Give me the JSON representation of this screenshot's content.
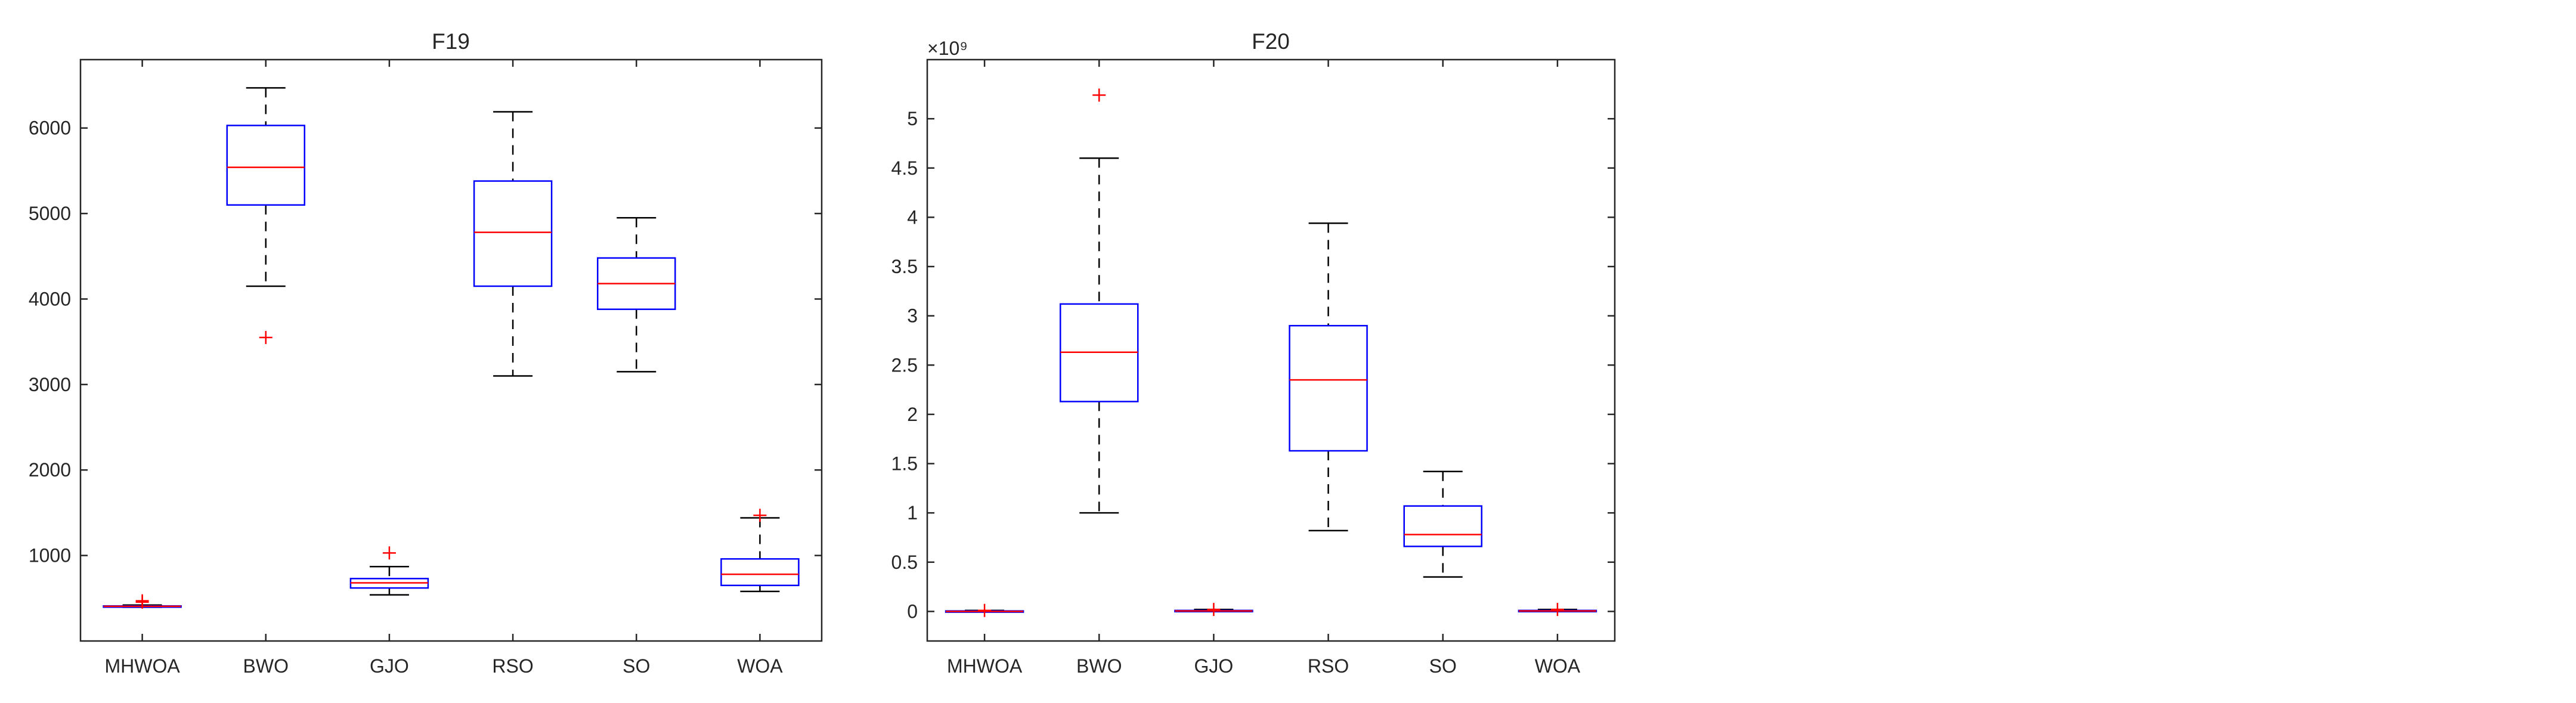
{
  "chart_data": [
    {
      "type": "box",
      "title": "F19",
      "categories": [
        "MHWOA",
        "BWO",
        "GJO",
        "RSO",
        "SO",
        "WOA"
      ],
      "ylim": [
        0,
        6800
      ],
      "yticks": [
        1000,
        2000,
        3000,
        4000,
        5000,
        6000
      ],
      "ytick_labels": [
        "1000",
        "2000",
        "3000",
        "4000",
        "5000",
        "6000"
      ],
      "exponent_label": "",
      "grid": false,
      "colors": {
        "box": "#0000ff",
        "median": "#ff0000",
        "whisker": "#000000",
        "outlier": "#ff0000"
      },
      "boxes": [
        {
          "min": 395,
          "q1": 400,
          "median": 405,
          "q3": 410,
          "max": 420,
          "outliers": [
            455,
            470
          ]
        },
        {
          "min": 4150,
          "q1": 5100,
          "median": 5540,
          "q3": 6030,
          "max": 6470,
          "outliers": [
            3550
          ]
        },
        {
          "min": 540,
          "q1": 620,
          "median": 680,
          "q3": 730,
          "max": 870,
          "outliers": [
            1030
          ]
        },
        {
          "min": 3100,
          "q1": 4150,
          "median": 4780,
          "q3": 5380,
          "max": 6190,
          "outliers": []
        },
        {
          "min": 3150,
          "q1": 3880,
          "median": 4180,
          "q3": 4480,
          "max": 4950,
          "outliers": []
        },
        {
          "min": 580,
          "q1": 650,
          "median": 780,
          "q3": 960,
          "max": 1440,
          "outliers": [
            1470
          ]
        }
      ]
    },
    {
      "type": "box",
      "title": "F20",
      "categories": [
        "MHWOA",
        "BWO",
        "GJO",
        "RSO",
        "SO",
        "WOA"
      ],
      "ylim": [
        -0.3,
        5.6
      ],
      "yticks": [
        0,
        0.5,
        1,
        1.5,
        2,
        2.5,
        3,
        3.5,
        4,
        4.5,
        5
      ],
      "ytick_labels": [
        "0",
        "0.5",
        "1",
        "1.5",
        "2",
        "2.5",
        "3",
        "3.5",
        "4",
        "4.5",
        "5"
      ],
      "exponent_label": "×10⁹",
      "grid": false,
      "colors": {
        "box": "#0000ff",
        "median": "#ff0000",
        "whisker": "#000000",
        "outlier": "#ff0000"
      },
      "boxes": [
        {
          "min": 0,
          "q1": 0,
          "median": 0,
          "q3": 0.005,
          "max": 0.01,
          "outliers": [
            0.01
          ]
        },
        {
          "min": 1.0,
          "q1": 2.13,
          "median": 2.63,
          "q3": 3.12,
          "max": 4.6,
          "outliers": [
            5.24
          ]
        },
        {
          "min": 0,
          "q1": 0,
          "median": 0.005,
          "q3": 0.01,
          "max": 0.02,
          "outliers": [
            0.02
          ]
        },
        {
          "min": 0.82,
          "q1": 1.63,
          "median": 2.35,
          "q3": 2.9,
          "max": 3.94,
          "outliers": []
        },
        {
          "min": 0.35,
          "q1": 0.66,
          "median": 0.78,
          "q3": 1.07,
          "max": 1.42,
          "outliers": []
        },
        {
          "min": 0,
          "q1": 0,
          "median": 0.005,
          "q3": 0.01,
          "max": 0.02,
          "outliers": [
            0.02
          ]
        }
      ]
    }
  ]
}
